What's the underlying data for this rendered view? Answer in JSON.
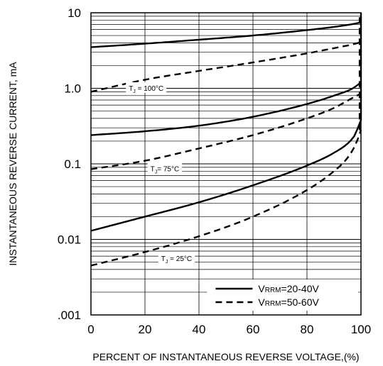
{
  "chart_data": {
    "type": "line",
    "title": "",
    "xlabel": "PERCENT OF INSTANTANEOUS REVERSE VOLTAGE,(%)",
    "ylabel": "INSTANTANEOUS REVERSE CURRENT, mA",
    "xlim": [
      0,
      100
    ],
    "ylim": [
      0.001,
      10
    ],
    "yscale": "log",
    "grid": true,
    "x_tick_labels": [
      "0",
      "20",
      "40",
      "60",
      "80",
      "100"
    ],
    "x_ticks": [
      0,
      20,
      40,
      60,
      80,
      100
    ],
    "y_tick_labels": [
      ".001",
      "0.01",
      "0.1",
      "1.0",
      "10"
    ],
    "y_ticks": [
      0.001,
      0.01,
      0.1,
      1,
      10
    ],
    "legend": {
      "position": "bottom-right",
      "entries": [
        {
          "style": "solid",
          "prefix": "V",
          "sub": "RRM",
          "suffix": "=20-40V"
        },
        {
          "style": "dashed",
          "prefix": "V",
          "sub": "RRM",
          "suffix": "=50-60V"
        }
      ]
    },
    "annotations": [
      {
        "prefix": "T",
        "sub": "J",
        "suffix": " = 100°C",
        "x": 14,
        "y": 0.97
      },
      {
        "prefix": "T",
        "sub": "J",
        "suffix": "= 75°C",
        "x": 22,
        "y": 0.083
      },
      {
        "prefix": "T",
        "sub": "J",
        "suffix": " = 25°C",
        "x": 26,
        "y": 0.0054
      }
    ],
    "series": [
      {
        "style": "solid",
        "x": [
          0,
          20,
          40,
          60,
          80,
          90,
          98,
          100
        ],
        "y": [
          3.5,
          3.9,
          4.4,
          5.0,
          5.9,
          6.5,
          7.2,
          7.5
        ]
      },
      {
        "style": "dashed",
        "x": [
          0,
          20,
          40,
          60,
          80,
          90,
          98,
          100
        ],
        "y": [
          0.9,
          1.3,
          1.7,
          2.2,
          2.9,
          3.4,
          3.9,
          4.1
        ]
      },
      {
        "style": "solid",
        "x": [
          0,
          20,
          40,
          60,
          80,
          90,
          97,
          100
        ],
        "y": [
          0.24,
          0.27,
          0.32,
          0.42,
          0.62,
          0.8,
          1.0,
          1.2
        ]
      },
      {
        "style": "dashed",
        "x": [
          0,
          20,
          40,
          60,
          80,
          90,
          97,
          100
        ],
        "y": [
          0.085,
          0.11,
          0.16,
          0.24,
          0.4,
          0.55,
          0.75,
          0.85
        ]
      },
      {
        "style": "solid",
        "x": [
          0,
          20,
          40,
          60,
          80,
          90,
          96,
          98,
          99,
          100
        ],
        "y": [
          0.013,
          0.02,
          0.031,
          0.052,
          0.095,
          0.14,
          0.2,
          0.25,
          0.31,
          0.38
        ]
      },
      {
        "style": "dashed",
        "x": [
          0,
          20,
          40,
          60,
          80,
          90,
          95,
          98,
          100
        ],
        "y": [
          0.0045,
          0.0068,
          0.011,
          0.02,
          0.045,
          0.08,
          0.12,
          0.18,
          0.28
        ]
      },
      {
        "style": "solid",
        "x": [
          100,
          100
        ],
        "y": [
          0.38,
          10
        ]
      },
      {
        "style": "dashed",
        "x": [
          99.5,
          99.5
        ],
        "y": [
          0.28,
          10
        ]
      }
    ]
  }
}
